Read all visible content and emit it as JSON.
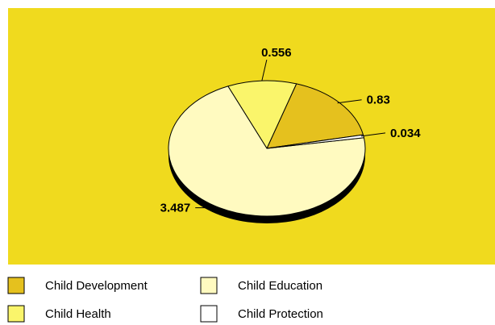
{
  "chart_data": {
    "type": "pie",
    "title": "",
    "background_color": "#F0DA1E",
    "categories": [
      "Child Development",
      "Child Health",
      "Child Education",
      "Child Protection"
    ],
    "values": [
      0.83,
      0.556,
      3.487,
      0.034
    ],
    "value_labels": [
      "0.83",
      "0.556",
      "3.487",
      "0.034"
    ],
    "colors": [
      "#E5C11E",
      "#FAF56B",
      "#FFFAC0",
      "#FFFFFF"
    ],
    "legend_placement": "bottom",
    "legend": [
      {
        "label": "Child Development",
        "color": "#E5C11E"
      },
      {
        "label": "Child Education",
        "color": "#FFFAC0"
      },
      {
        "label": "Child Health",
        "color": "#FAF56B"
      },
      {
        "label": "Child Protection",
        "color": "#FFFFFF"
      }
    ]
  }
}
